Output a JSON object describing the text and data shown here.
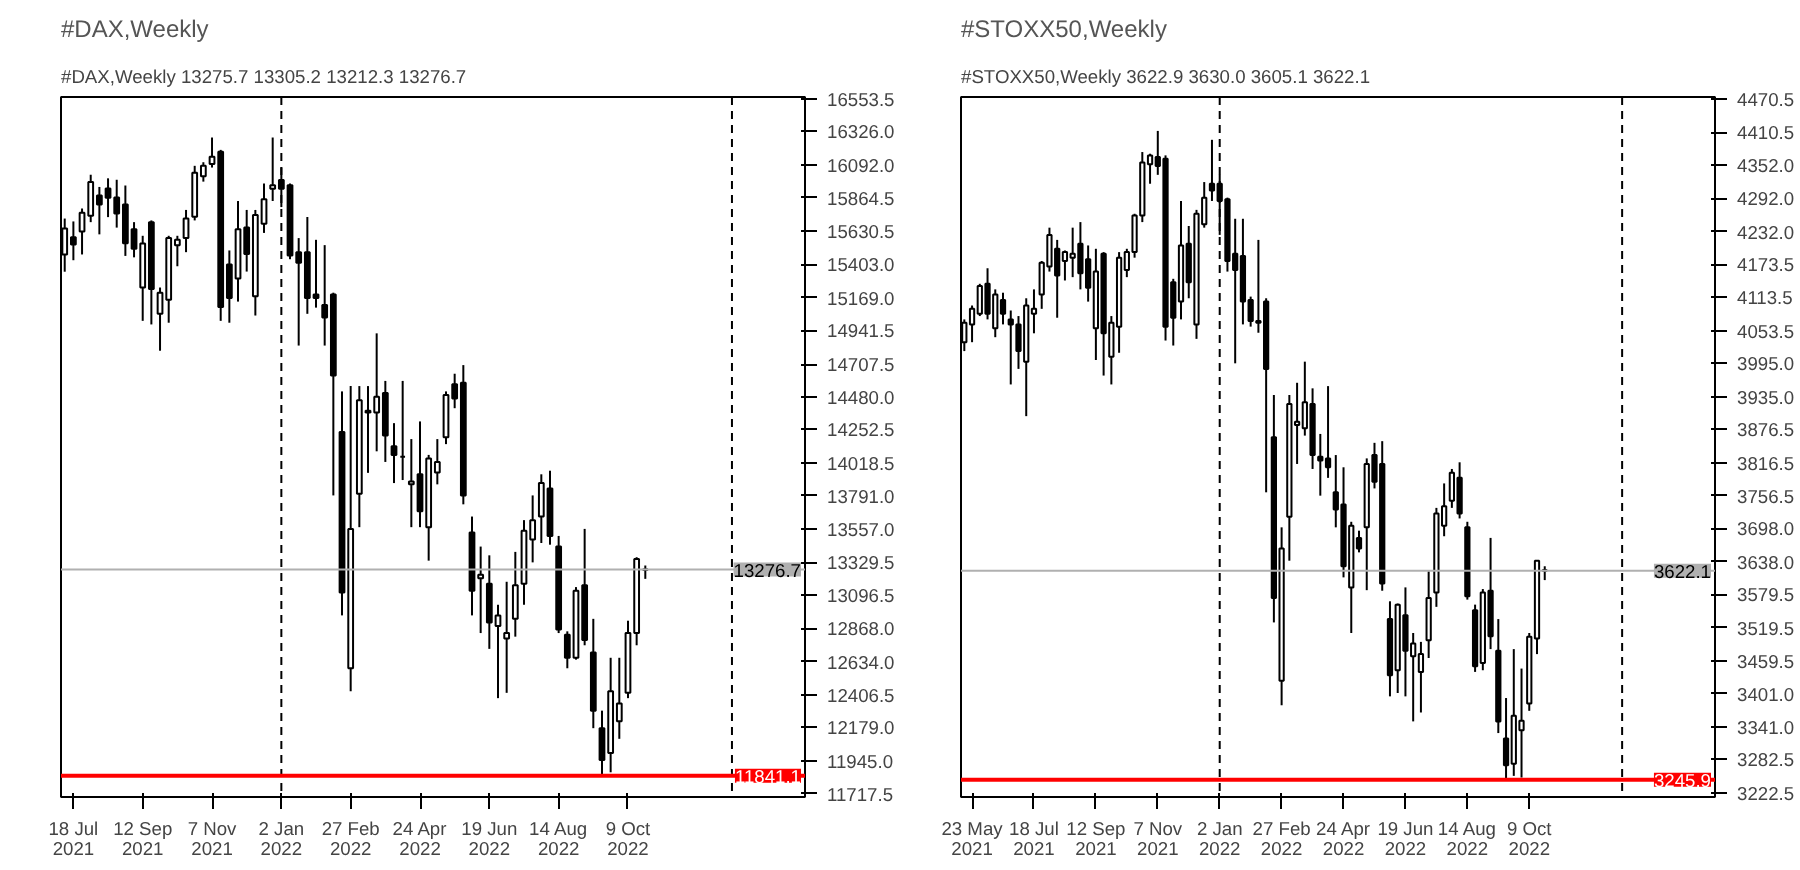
{
  "chart_data": [
    {
      "type": "candlestick",
      "title": "#DAX,Weekly",
      "subtitle": "#DAX,Weekly  13275.7 13305.2 13212.3 13276.7",
      "x": [
        "2021-07-11",
        "2021-07-18",
        "2021-07-25",
        "2021-08-01",
        "2021-08-08",
        "2021-08-15",
        "2021-08-22",
        "2021-08-29",
        "2021-09-05",
        "2021-09-12",
        "2021-09-19",
        "2021-09-26",
        "2021-10-03",
        "2021-10-10",
        "2021-10-17",
        "2021-10-24",
        "2021-10-31",
        "2021-11-07",
        "2021-11-14",
        "2021-11-21",
        "2021-11-28",
        "2021-12-05",
        "2021-12-12",
        "2021-12-19",
        "2021-12-26",
        "2022-01-02",
        "2022-01-09",
        "2022-01-16",
        "2022-01-23",
        "2022-01-30",
        "2022-02-06",
        "2022-02-13",
        "2022-02-20",
        "2022-02-27",
        "2022-03-06",
        "2022-03-13",
        "2022-03-20",
        "2022-03-27",
        "2022-04-03",
        "2022-04-10",
        "2022-04-17",
        "2022-04-24",
        "2022-05-01",
        "2022-05-08",
        "2022-05-15",
        "2022-05-22",
        "2022-05-29",
        "2022-06-05",
        "2022-06-12",
        "2022-06-19",
        "2022-06-26",
        "2022-07-03",
        "2022-07-10",
        "2022-07-17",
        "2022-07-24",
        "2022-07-31",
        "2022-08-07",
        "2022-08-14",
        "2022-08-21",
        "2022-08-28",
        "2022-09-04",
        "2022-09-11",
        "2022-09-18",
        "2022-09-25",
        "2022-10-02",
        "2022-10-09",
        "2022-10-16",
        "2022-10-23"
      ],
      "ohlc": [
        [
          15470,
          15720,
          15350,
          15650
        ],
        [
          15590,
          15700,
          15430,
          15540
        ],
        [
          15630,
          15790,
          15470,
          15760
        ],
        [
          15740,
          16025,
          15695,
          15975
        ],
        [
          15880,
          15940,
          15610,
          15817
        ],
        [
          15930,
          16000,
          15730,
          15865
        ],
        [
          15866,
          15990,
          15657,
          15756
        ],
        [
          15817,
          15950,
          15460,
          15548
        ],
        [
          15645,
          15695,
          15450,
          15510
        ],
        [
          15240,
          15600,
          15008,
          15547
        ],
        [
          15695,
          15707,
          14983,
          15230
        ],
        [
          15057,
          15240,
          14800,
          15204
        ],
        [
          15155,
          15600,
          14995,
          15584
        ],
        [
          15535,
          15600,
          15388,
          15572
        ],
        [
          15584,
          15780,
          15486,
          15720
        ],
        [
          15732,
          16087,
          15707,
          16038
        ],
        [
          16014,
          16112,
          15977,
          16087
        ],
        [
          16100,
          16284,
          16075,
          16150
        ],
        [
          16185,
          16198,
          15008,
          15105
        ],
        [
          15400,
          15498,
          14995,
          15167
        ],
        [
          15302,
          15842,
          15142,
          15645
        ],
        [
          15657,
          15780,
          15351,
          15474
        ],
        [
          15179,
          15780,
          15045,
          15744
        ],
        [
          15683,
          15964,
          15620,
          15854
        ],
        [
          15928,
          16284,
          15842,
          15952
        ],
        [
          15989,
          16075,
          15800,
          15928
        ],
        [
          15952,
          15964,
          15437,
          15462
        ],
        [
          15486,
          15584,
          14836,
          15412
        ],
        [
          15486,
          15731,
          15057,
          15167
        ],
        [
          15192,
          15572,
          15100,
          15167
        ],
        [
          15118,
          15535,
          14836,
          15032
        ],
        [
          15192,
          15204,
          13793,
          14627
        ],
        [
          14234,
          14517,
          12958,
          13118
        ],
        [
          12590,
          14554,
          12430,
          13560
        ],
        [
          13805,
          14554,
          13572,
          14456
        ],
        [
          14382,
          14554,
          13950,
          14370
        ],
        [
          14370,
          14921,
          14100,
          14480
        ],
        [
          14505,
          14590,
          14026,
          14210
        ],
        [
          14136,
          14296,
          13879,
          14075
        ],
        [
          14063,
          14590,
          13900,
          14063
        ],
        [
          13870,
          14185,
          13572,
          13890
        ],
        [
          13940,
          14308,
          13572,
          13683
        ],
        [
          13572,
          14075,
          13339,
          14050
        ],
        [
          13952,
          14185,
          13870,
          14026
        ],
        [
          14198,
          14517,
          14150,
          14492
        ],
        [
          14566,
          14640,
          14400,
          14468
        ],
        [
          14578,
          14700,
          13731,
          13793
        ],
        [
          13535,
          13646,
          12958,
          13130
        ],
        [
          13216,
          13437,
          12835,
          13241
        ],
        [
          13179,
          13376,
          12725,
          12909
        ],
        [
          12884,
          13032,
          12382,
          12958
        ],
        [
          12798,
          13192,
          12419,
          12835
        ],
        [
          12934,
          13400,
          12810,
          13167
        ],
        [
          13179,
          13621,
          13032,
          13547
        ],
        [
          13486,
          13793,
          13327,
          13621
        ],
        [
          13646,
          13940,
          13462,
          13879
        ],
        [
          13842,
          13965,
          13450,
          13511
        ],
        [
          13437,
          13511,
          12835,
          12860
        ],
        [
          12823,
          12847,
          12590,
          12663
        ],
        [
          12663,
          13155,
          12650,
          13130
        ],
        [
          13167,
          13560,
          12750,
          12786
        ],
        [
          12700,
          12934,
          12173,
          12295
        ],
        [
          12173,
          12295,
          11842,
          11952
        ],
        [
          12000,
          12663,
          11866,
          12430
        ],
        [
          12222,
          12663,
          12099,
          12345
        ],
        [
          12419,
          12921,
          12382,
          12835
        ],
        [
          12835,
          13363,
          12750,
          13351
        ],
        [
          13275.7,
          13305.2,
          13212.3,
          13276.7
        ]
      ],
      "xlim": [
        "2021-07-08",
        "2023-03-01"
      ],
      "ylim": [
        11694,
        16566
      ],
      "xticks": [
        {
          "value": "2021-07-18",
          "label": "18 Jul 2021"
        },
        {
          "value": "2021-09-12",
          "label": "12 Sep 2021"
        },
        {
          "value": "2021-11-07",
          "label": "7 Nov 2021"
        },
        {
          "value": "2022-01-02",
          "label": "2 Jan 2022"
        },
        {
          "value": "2022-02-27",
          "label": "27 Feb 2022"
        },
        {
          "value": "2022-04-24",
          "label": "24 Apr 2022"
        },
        {
          "value": "2022-06-19",
          "label": "19 Jun 2022"
        },
        {
          "value": "2022-08-14",
          "label": "14 Aug 2022"
        },
        {
          "value": "2022-10-09",
          "label": "9 Oct 2022"
        }
      ],
      "yticks": [
        {
          "value": 16553.5,
          "label": "16553.5"
        },
        {
          "value": 16326,
          "label": "16326.0"
        },
        {
          "value": 16092,
          "label": "16092.0"
        },
        {
          "value": 15864.5,
          "label": "15864.5"
        },
        {
          "value": 15630.5,
          "label": "15630.5"
        },
        {
          "value": 15403,
          "label": "15403.0"
        },
        {
          "value": 15169,
          "label": "15169.0"
        },
        {
          "value": 14941.5,
          "label": "14941.5"
        },
        {
          "value": 14707.5,
          "label": "14707.5"
        },
        {
          "value": 14480,
          "label": "14480.0"
        },
        {
          "value": 14252.5,
          "label": "14252.5"
        },
        {
          "value": 14018.5,
          "label": "14018.5"
        },
        {
          "value": 13791,
          "label": "13791.0"
        },
        {
          "value": 13557,
          "label": "13557.0"
        },
        {
          "value": 13329.5,
          "label": "13329.5"
        },
        {
          "value": 13096.5,
          "label": "13096.5"
        },
        {
          "value": 12868,
          "label": "12868.0"
        },
        {
          "value": 12634,
          "label": "12634.0"
        },
        {
          "value": 12406.5,
          "label": "12406.5"
        },
        {
          "value": 12179,
          "label": "12179.0"
        },
        {
          "value": 11945,
          "label": "11945.0"
        },
        {
          "value": 11717.5,
          "label": "11717.5"
        }
      ],
      "ref_lines": [
        {
          "axis": "x",
          "value": "2022-01-02",
          "color": "#000000",
          "line_style": "dashed"
        },
        {
          "axis": "x",
          "value": "2023-01-01",
          "color": "#000000",
          "line_style": "dashed"
        },
        {
          "axis": "y",
          "value": 13276.7,
          "label": "13276.7",
          "color": "#b0b0b0",
          "line_style": "solid"
        },
        {
          "axis": "y",
          "value": 11841.1,
          "label": "11841.1",
          "color": "#ff0000",
          "line_style": "solid"
        }
      ]
    },
    {
      "type": "candlestick",
      "title": "#STOXX50,Weekly",
      "subtitle": "#STOXX50,Weekly  3622.9 3630.0 3605.1 3622.1",
      "x": [
        "2021-05-16",
        "2021-05-23",
        "2021-05-30",
        "2021-06-06",
        "2021-06-13",
        "2021-06-20",
        "2021-06-27",
        "2021-07-04",
        "2021-07-11",
        "2021-07-18",
        "2021-07-25",
        "2021-08-01",
        "2021-08-08",
        "2021-08-15",
        "2021-08-22",
        "2021-08-29",
        "2021-09-05",
        "2021-09-12",
        "2021-09-19",
        "2021-09-26",
        "2021-10-03",
        "2021-10-10",
        "2021-10-17",
        "2021-10-24",
        "2021-10-31",
        "2021-11-07",
        "2021-11-14",
        "2021-11-21",
        "2021-11-28",
        "2021-12-05",
        "2021-12-12",
        "2021-12-19",
        "2021-12-26",
        "2022-01-02",
        "2022-01-09",
        "2022-01-16",
        "2022-01-23",
        "2022-01-30",
        "2022-02-06",
        "2022-02-13",
        "2022-02-20",
        "2022-02-27",
        "2022-03-06",
        "2022-03-13",
        "2022-03-20",
        "2022-03-27",
        "2022-04-03",
        "2022-04-10",
        "2022-04-17",
        "2022-04-24",
        "2022-05-01",
        "2022-05-08",
        "2022-05-15",
        "2022-05-22",
        "2022-05-29",
        "2022-06-05",
        "2022-06-12",
        "2022-06-19",
        "2022-06-26",
        "2022-07-03",
        "2022-07-10",
        "2022-07-17",
        "2022-07-24",
        "2022-07-31",
        "2022-08-07",
        "2022-08-14",
        "2022-08-21",
        "2022-08-28",
        "2022-09-04",
        "2022-09-11",
        "2022-09-18",
        "2022-09-25",
        "2022-10-02",
        "2022-10-09",
        "2022-10-16",
        "2022-10-23"
      ],
      "ohlc": [
        [
          4033,
          4074,
          4017,
          4068
        ],
        [
          4065,
          4099,
          4033,
          4093
        ],
        [
          4084,
          4138,
          4080,
          4134
        ],
        [
          4138,
          4166,
          4074,
          4084
        ],
        [
          4058,
          4128,
          4042,
          4119
        ],
        [
          4109,
          4122,
          4065,
          4084
        ],
        [
          4074,
          4090,
          3957,
          4065
        ],
        [
          4065,
          4080,
          3985,
          4017
        ],
        [
          3998,
          4112,
          3900,
          4099
        ],
        [
          4084,
          4128,
          4049,
          4093
        ],
        [
          4119,
          4179,
          4093,
          4176
        ],
        [
          4169,
          4239,
          4160,
          4226
        ],
        [
          4201,
          4217,
          4077,
          4153
        ],
        [
          4179,
          4198,
          4144,
          4195
        ],
        [
          4185,
          4239,
          4150,
          4192
        ],
        [
          4210,
          4249,
          4128,
          4157
        ],
        [
          4182,
          4207,
          4106,
          4131
        ],
        [
          4058,
          4201,
          4001,
          4160
        ],
        [
          4192,
          4195,
          3973,
          4049
        ],
        [
          4007,
          4080,
          3957,
          4068
        ],
        [
          4061,
          4195,
          4014,
          4185
        ],
        [
          4163,
          4201,
          4150,
          4195
        ],
        [
          4195,
          4264,
          4185,
          4261
        ],
        [
          4261,
          4375,
          4249,
          4356
        ],
        [
          4353,
          4372,
          4318,
          4369
        ],
        [
          4366,
          4413,
          4334,
          4350
        ],
        [
          4363,
          4369,
          4036,
          4061
        ],
        [
          4141,
          4147,
          4027,
          4077
        ],
        [
          4106,
          4287,
          4074,
          4207
        ],
        [
          4210,
          4242,
          4112,
          4141
        ],
        [
          4065,
          4271,
          4039,
          4264
        ],
        [
          4245,
          4321,
          4239,
          4293
        ],
        [
          4318,
          4397,
          4287,
          4306
        ],
        [
          4318,
          4334,
          4226,
          4287
        ],
        [
          4290,
          4293,
          4160,
          4179
        ],
        [
          4192,
          4255,
          3995,
          4163
        ],
        [
          4188,
          4255,
          4065,
          4106
        ],
        [
          4109,
          4115,
          4061,
          4071
        ],
        [
          4071,
          4217,
          4050,
          4068
        ],
        [
          4106,
          4112,
          3763,
          3985
        ],
        [
          3862,
          3938,
          3529,
          3573
        ],
        [
          3424,
          3700,
          3380,
          3662
        ],
        [
          3719,
          3938,
          3640,
          3922
        ],
        [
          3884,
          3960,
          3814,
          3890
        ],
        [
          3878,
          3998,
          3865,
          3925
        ],
        [
          3922,
          3950,
          3805,
          3830
        ],
        [
          3827,
          3868,
          3757,
          3820
        ],
        [
          3824,
          3954,
          3789,
          3808
        ],
        [
          3763,
          3830,
          3700,
          3732
        ],
        [
          3741,
          3808,
          3610,
          3630
        ],
        [
          3592,
          3710,
          3510,
          3703
        ],
        [
          3681,
          3694,
          3655,
          3662
        ],
        [
          3700,
          3824,
          3587,
          3814
        ],
        [
          3830,
          3852,
          3770,
          3782
        ],
        [
          3814,
          3855,
          3586,
          3599
        ],
        [
          3535,
          3567,
          3396,
          3434
        ],
        [
          3443,
          3563,
          3402,
          3561
        ],
        [
          3542,
          3592,
          3396,
          3478
        ],
        [
          3468,
          3510,
          3351,
          3491
        ],
        [
          3440,
          3494,
          3367,
          3472
        ],
        [
          3497,
          3621,
          3465,
          3573
        ],
        [
          3583,
          3735,
          3557,
          3725
        ],
        [
          3703,
          3779,
          3684,
          3738
        ],
        [
          3748,
          3805,
          3735,
          3798
        ],
        [
          3789,
          3817,
          3716,
          3725
        ],
        [
          3700,
          3710,
          3570,
          3576
        ],
        [
          3551,
          3561,
          3440,
          3450
        ],
        [
          3456,
          3589,
          3443,
          3583
        ],
        [
          3586,
          3681,
          3481,
          3504
        ],
        [
          3478,
          3535,
          3330,
          3351
        ],
        [
          3320,
          3393,
          3244,
          3272
        ],
        [
          3275,
          3481,
          3253,
          3361
        ],
        [
          3335,
          3446,
          3250,
          3352
        ],
        [
          3383,
          3510,
          3370,
          3503
        ],
        [
          3500,
          3640,
          3472,
          3640
        ],
        [
          3622.9,
          3630.0,
          3605.1,
          3622.1
        ]
      ],
      "xlim": [
        "2021-05-13",
        "2023-03-26"
      ],
      "ylim": [
        3215,
        4474
      ],
      "xticks": [
        {
          "value": "2021-05-23",
          "label": "23 May 2021"
        },
        {
          "value": "2021-07-18",
          "label": "18 Jul 2021"
        },
        {
          "value": "2021-09-12",
          "label": "12 Sep 2021"
        },
        {
          "value": "2021-11-07",
          "label": "7 Nov 2021"
        },
        {
          "value": "2022-01-02",
          "label": "2 Jan 2022"
        },
        {
          "value": "2022-02-27",
          "label": "27 Feb 2022"
        },
        {
          "value": "2022-04-24",
          "label": "24 Apr 2022"
        },
        {
          "value": "2022-06-19",
          "label": "19 Jun 2022"
        },
        {
          "value": "2022-08-14",
          "label": "14 Aug 2022"
        },
        {
          "value": "2022-10-09",
          "label": "9 Oct 2022"
        }
      ],
      "yticks": [
        {
          "value": 4470.5,
          "label": "4470.5"
        },
        {
          "value": 4410.5,
          "label": "4410.5"
        },
        {
          "value": 4352,
          "label": "4352.0"
        },
        {
          "value": 4292,
          "label": "4292.0"
        },
        {
          "value": 4232,
          "label": "4232.0"
        },
        {
          "value": 4173.5,
          "label": "4173.5"
        },
        {
          "value": 4113.5,
          "label": "4113.5"
        },
        {
          "value": 4053.5,
          "label": "4053.5"
        },
        {
          "value": 3995,
          "label": "3995.0"
        },
        {
          "value": 3935,
          "label": "3935.0"
        },
        {
          "value": 3876.5,
          "label": "3876.5"
        },
        {
          "value": 3816.5,
          "label": "3816.5"
        },
        {
          "value": 3756.5,
          "label": "3756.5"
        },
        {
          "value": 3698,
          "label": "3698.0"
        },
        {
          "value": 3638,
          "label": "3638.0"
        },
        {
          "value": 3579.5,
          "label": "3579.5"
        },
        {
          "value": 3519.5,
          "label": "3519.5"
        },
        {
          "value": 3459.5,
          "label": "3459.5"
        },
        {
          "value": 3401,
          "label": "3401.0"
        },
        {
          "value": 3341,
          "label": "3341.0"
        },
        {
          "value": 3282.5,
          "label": "3282.5"
        },
        {
          "value": 3222.5,
          "label": "3222.5"
        }
      ],
      "ref_lines": [
        {
          "axis": "x",
          "value": "2022-01-02",
          "color": "#000000",
          "line_style": "dashed"
        },
        {
          "axis": "x",
          "value": "2023-01-01",
          "color": "#000000",
          "line_style": "dashed"
        },
        {
          "axis": "y",
          "value": 3622.1,
          "label": "3622.1",
          "color": "#b0b0b0",
          "line_style": "solid"
        },
        {
          "axis": "y",
          "value": 3245.9,
          "label": "3245.9",
          "color": "#ff0000",
          "line_style": "solid"
        }
      ]
    }
  ]
}
